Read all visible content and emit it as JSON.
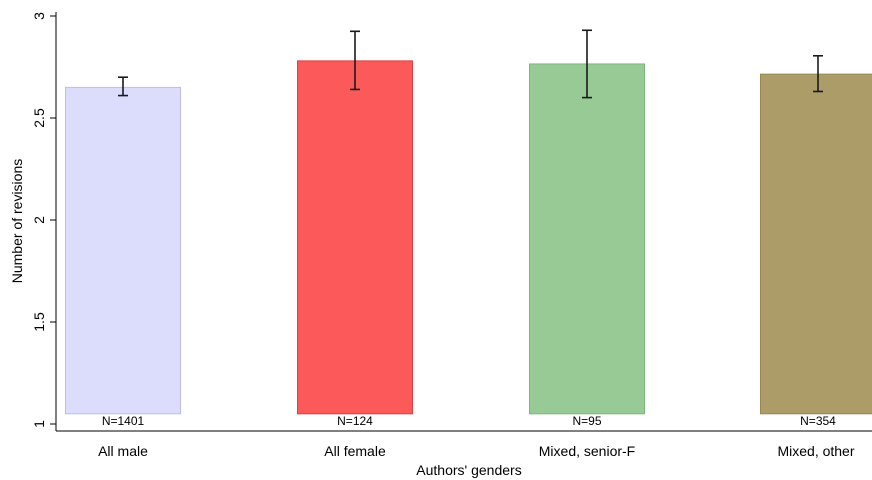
{
  "chart_data": {
    "type": "bar",
    "xlabel": "Authors' genders",
    "ylabel": "Number of revisions",
    "ylim": [
      1,
      3
    ],
    "yticks": [
      {
        "value": 1,
        "label": "1"
      },
      {
        "value": 1.5,
        "label": "1.5"
      },
      {
        "value": 2,
        "label": "2"
      },
      {
        "value": 2.5,
        "label": "2.5"
      },
      {
        "value": 3,
        "label": "3"
      }
    ],
    "bar_base": 1.05,
    "categories": [
      "All male",
      "All female",
      "Mixed, senior-F",
      "Mixed, other"
    ],
    "values": [
      2.65,
      2.78,
      2.765,
      2.715
    ],
    "ci_low": [
      2.61,
      2.64,
      2.6,
      2.63
    ],
    "ci_high": [
      2.7,
      2.925,
      2.93,
      2.805
    ],
    "n_labels": [
      "N=1401",
      "N=124",
      "N=95",
      "N=354"
    ],
    "colors": [
      {
        "fill": "#dcdcfc",
        "stroke": "#bcbcf0"
      },
      {
        "fill": "#fc5a5a",
        "stroke": "#e03c3c"
      },
      {
        "fill": "#98ca96",
        "stroke": "#7cb87a"
      },
      {
        "fill": "#ac9c68",
        "stroke": "#978752"
      }
    ],
    "grid": false,
    "legend": "none"
  }
}
